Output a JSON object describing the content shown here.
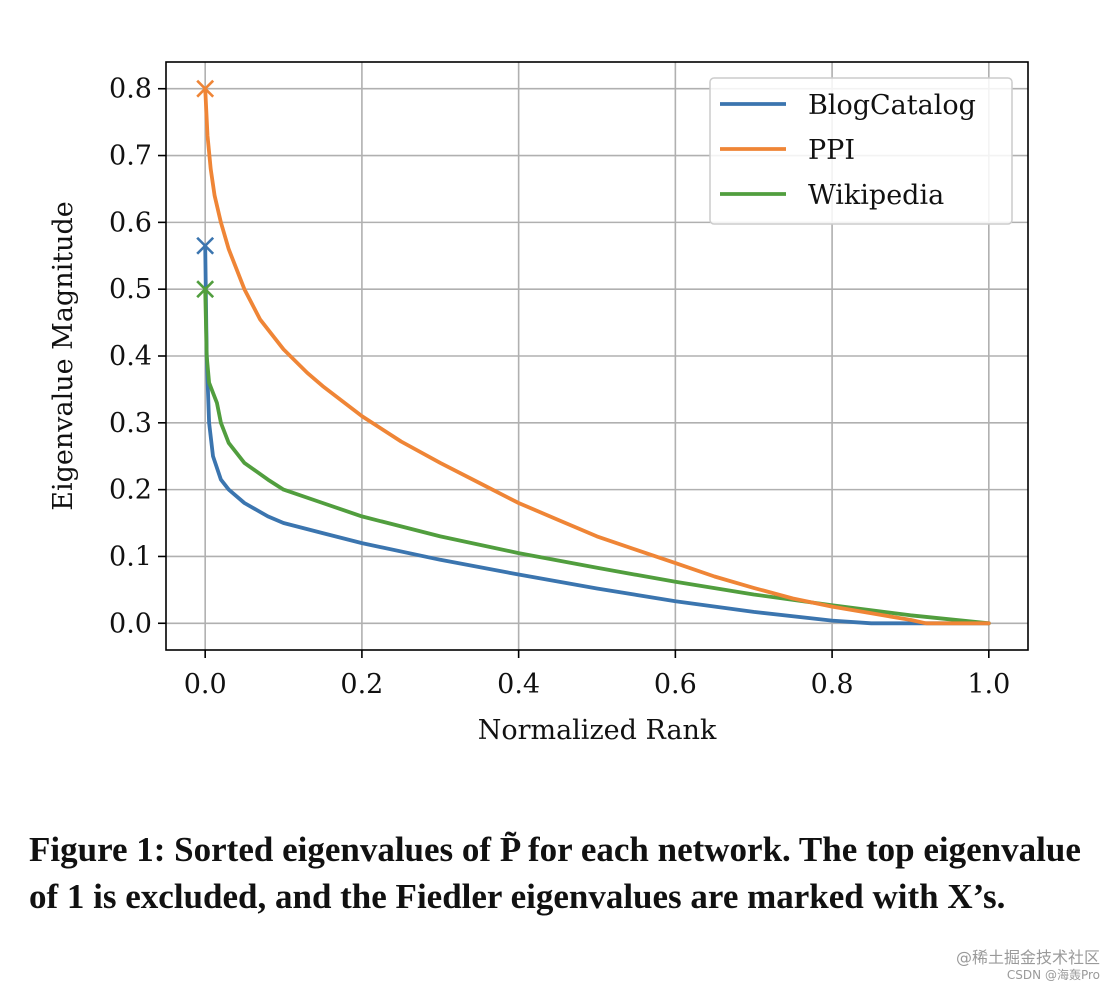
{
  "chart_data": {
    "type": "line",
    "xlabel": "Normalized Rank",
    "ylabel": "Eigenvalue Magnitude",
    "xlim": [
      -0.05,
      1.05
    ],
    "ylim": [
      -0.04,
      0.84
    ],
    "xticks": [
      0.0,
      0.2,
      0.4,
      0.6,
      0.8,
      1.0
    ],
    "xtick_labels": [
      "0.0",
      "0.2",
      "0.4",
      "0.6",
      "0.8",
      "1.0"
    ],
    "yticks": [
      0.0,
      0.1,
      0.2,
      0.3,
      0.4,
      0.5,
      0.6,
      0.7,
      0.8
    ],
    "ytick_labels": [
      "0.0",
      "0.1",
      "0.2",
      "0.3",
      "0.4",
      "0.5",
      "0.6",
      "0.7",
      "0.8"
    ],
    "grid": true,
    "legend_position": "top-right",
    "series": [
      {
        "name": "BlogCatalog",
        "color": "#3b75af",
        "x": [
          0.0,
          0.002,
          0.005,
          0.01,
          0.02,
          0.03,
          0.05,
          0.08,
          0.1,
          0.15,
          0.2,
          0.3,
          0.4,
          0.5,
          0.6,
          0.7,
          0.8,
          0.85,
          0.9,
          1.0
        ],
        "y": [
          0.565,
          0.4,
          0.3,
          0.25,
          0.215,
          0.2,
          0.18,
          0.16,
          0.15,
          0.135,
          0.12,
          0.095,
          0.073,
          0.052,
          0.033,
          0.017,
          0.004,
          0.0,
          0.0,
          0.0
        ],
        "fiedler": {
          "x": 0.0,
          "y": 0.565
        }
      },
      {
        "name": "PPI",
        "color": "#ef8536",
        "x": [
          0.0,
          0.003,
          0.007,
          0.012,
          0.02,
          0.03,
          0.05,
          0.07,
          0.1,
          0.13,
          0.15,
          0.2,
          0.25,
          0.3,
          0.35,
          0.4,
          0.45,
          0.5,
          0.55,
          0.6,
          0.65,
          0.7,
          0.75,
          0.8,
          0.85,
          0.9,
          0.92,
          0.95,
          1.0
        ],
        "y": [
          0.8,
          0.73,
          0.68,
          0.64,
          0.6,
          0.56,
          0.5,
          0.455,
          0.41,
          0.375,
          0.355,
          0.31,
          0.272,
          0.24,
          0.21,
          0.18,
          0.155,
          0.13,
          0.11,
          0.09,
          0.07,
          0.053,
          0.037,
          0.025,
          0.015,
          0.005,
          0.0,
          0.0,
          0.0
        ],
        "fiedler": {
          "x": 0.0,
          "y": 0.8
        }
      },
      {
        "name": "Wikipedia",
        "color": "#519e3e",
        "x": [
          0.0,
          0.002,
          0.005,
          0.01,
          0.015,
          0.02,
          0.03,
          0.05,
          0.08,
          0.1,
          0.15,
          0.2,
          0.3,
          0.4,
          0.5,
          0.6,
          0.7,
          0.8,
          0.9,
          1.0
        ],
        "y": [
          0.5,
          0.4,
          0.36,
          0.345,
          0.33,
          0.3,
          0.27,
          0.24,
          0.215,
          0.2,
          0.18,
          0.16,
          0.13,
          0.105,
          0.083,
          0.062,
          0.043,
          0.027,
          0.012,
          0.0
        ],
        "fiedler": {
          "x": 0.0,
          "y": 0.5
        }
      }
    ]
  },
  "caption": "Figure 1: Sorted eigenvalues of P̃ for each network. The top eigenvalue of 1 is excluded, and the Fiedler eigenvalues are marked with X’s.",
  "watermark": {
    "line1": "@稀土掘金技术社区",
    "line2": "CSDN @海轰Pro"
  }
}
